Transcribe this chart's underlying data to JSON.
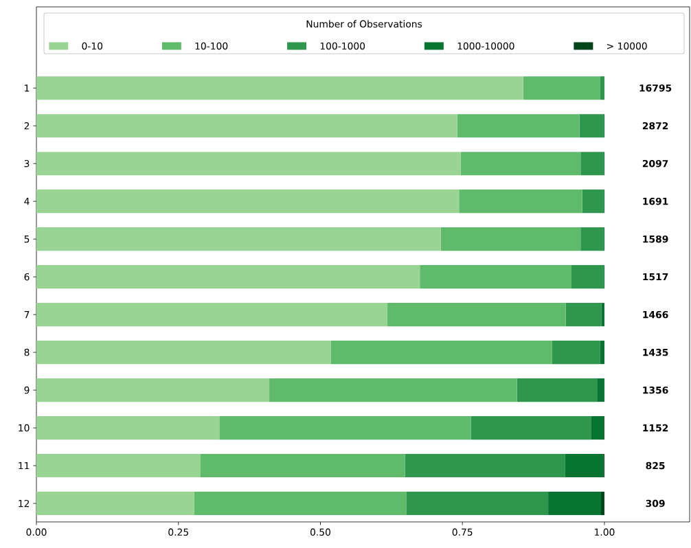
{
  "chart_data": {
    "type": "bar",
    "orientation": "horizontal",
    "stacked": true,
    "categories": [
      "1",
      "2",
      "3",
      "4",
      "5",
      "6",
      "7",
      "8",
      "9",
      "10",
      "11",
      "12"
    ],
    "series": [
      {
        "name": "0-10",
        "color": "#9ad494",
        "values": [
          0.857,
          0.741,
          0.747,
          0.744,
          0.712,
          0.675,
          0.618,
          0.518,
          0.41,
          0.322,
          0.289,
          0.278
        ]
      },
      {
        "name": "10-100",
        "color": "#60ba6c",
        "values": [
          0.135,
          0.215,
          0.211,
          0.217,
          0.246,
          0.267,
          0.314,
          0.39,
          0.436,
          0.443,
          0.36,
          0.373
        ]
      },
      {
        "name": "100-1000",
        "color": "#2e964d",
        "values": [
          0.008,
          0.042,
          0.04,
          0.037,
          0.04,
          0.056,
          0.063,
          0.084,
          0.141,
          0.212,
          0.282,
          0.25
        ]
      },
      {
        "name": "1000-10000",
        "color": "#087432",
        "values": [
          0,
          0.002,
          0.002,
          0.002,
          0.002,
          0.002,
          0.005,
          0.008,
          0.013,
          0.022,
          0.067,
          0.093
        ]
      },
      {
        "name": "> 10000",
        "color": "#00441b",
        "values": [
          0,
          0,
          0,
          0,
          0,
          0,
          0,
          0,
          0,
          0.001,
          0.002,
          0.006
        ]
      }
    ],
    "annotations": [
      "16795",
      "2872",
      "2097",
      "1691",
      "1589",
      "1517",
      "1466",
      "1435",
      "1356",
      "1152",
      "825",
      "309"
    ],
    "legend_title": "Number of Observations",
    "legend": "top",
    "xlim": [
      0,
      1.15
    ],
    "xticks": [
      {
        "value": 0,
        "label": "0.00"
      },
      {
        "value": 0.25,
        "label": "0.25"
      },
      {
        "value": 0.5,
        "label": "0.50"
      },
      {
        "value": 0.75,
        "label": "0.75"
      },
      {
        "value": 1,
        "label": "1.00"
      }
    ],
    "grid": false
  }
}
